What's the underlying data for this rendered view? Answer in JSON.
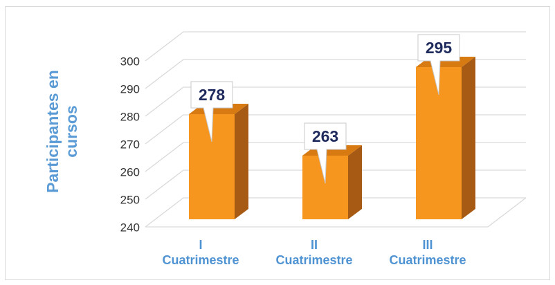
{
  "chart_data": {
    "type": "bar3d",
    "y_axis_label": "Participantes en cursos",
    "categories": [
      "I Cuatrimestre",
      "II Cuatrimestre",
      "III Cuatrimestre"
    ],
    "values": [
      278,
      263,
      295
    ],
    "color": "#f7961e",
    "ylim": [
      240,
      300
    ],
    "yticks": [
      240,
      250,
      260,
      270,
      280,
      290,
      300
    ],
    "grid": true
  }
}
